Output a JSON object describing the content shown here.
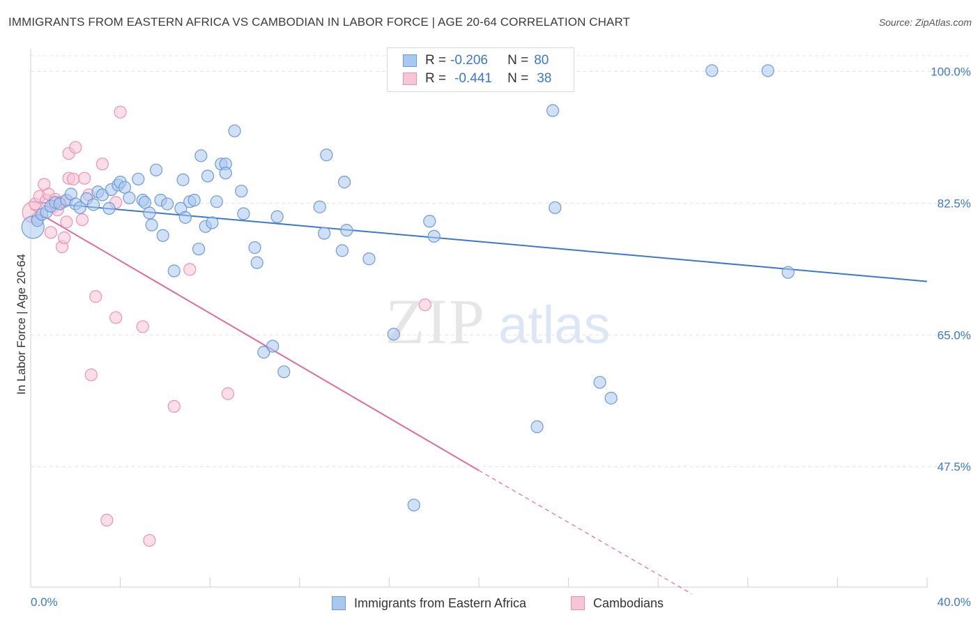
{
  "title": "IMMIGRANTS FROM EASTERN AFRICA VS CAMBODIAN IN LABOR FORCE | AGE 20-64 CORRELATION CHART",
  "source": "Source: ZipAtlas.com",
  "colors": {
    "blue": "#3a78d0",
    "blue_fill": "#a9c8f0",
    "pink": "#e26a9a",
    "pink_fill": "#f7b9cd",
    "grid": "#e3e3e3",
    "axis_label": "#3a78d0"
  },
  "legend": {
    "series1": {
      "r_label": "R =",
      "r_value": "-0.206",
      "n_label": "N =",
      "n_value": "80"
    },
    "series2": {
      "r_label": "R =",
      "r_value": "-0.441",
      "n_label": "N =",
      "n_value": "38"
    }
  },
  "bottom_legend": {
    "series1": "Immigrants from Eastern Africa",
    "series2": "Cambodians"
  },
  "watermark": {
    "zip": "ZIP",
    "atlas": "atlas"
  },
  "chart_data": {
    "type": "scatter",
    "title": "IMMIGRANTS FROM EASTERN AFRICA VS CAMBODIAN IN LABOR FORCE | AGE 20-64 CORRELATION CHART",
    "xlabel": "",
    "ylabel": "In Labor Force | Age 20-64",
    "xlim": [
      0,
      40
    ],
    "ylim": [
      31.5,
      103.0
    ],
    "x_tick_labels": [
      "0.0%",
      "40.0%"
    ],
    "y_ticks": [
      47.5,
      65.0,
      82.5,
      100.0
    ],
    "y_tick_labels": [
      "47.5%",
      "65.0%",
      "82.5%",
      "100.0%"
    ],
    "legend_position": "top-center",
    "grid": true,
    "series": [
      {
        "name": "Immigrants from Eastern Africa",
        "R": -0.206,
        "N": 80,
        "trend": {
          "x0": 0,
          "y0": 82.7,
          "x1": 40,
          "y1": 72.1
        },
        "points": [
          {
            "x": 0.1,
            "y": 79.3,
            "big": true
          },
          {
            "x": 0.3,
            "y": 80.2
          },
          {
            "x": 0.5,
            "y": 81.0
          },
          {
            "x": 0.7,
            "y": 81.3
          },
          {
            "x": 0.9,
            "y": 82.1
          },
          {
            "x": 1.1,
            "y": 82.6
          },
          {
            "x": 1.3,
            "y": 82.4
          },
          {
            "x": 1.6,
            "y": 82.9
          },
          {
            "x": 1.8,
            "y": 83.7
          },
          {
            "x": 2.0,
            "y": 82.4
          },
          {
            "x": 2.2,
            "y": 81.9
          },
          {
            "x": 2.5,
            "y": 83.1
          },
          {
            "x": 2.8,
            "y": 82.3
          },
          {
            "x": 3.0,
            "y": 84.0
          },
          {
            "x": 3.2,
            "y": 83.6
          },
          {
            "x": 3.5,
            "y": 81.8
          },
          {
            "x": 3.6,
            "y": 84.3
          },
          {
            "x": 3.9,
            "y": 84.9
          },
          {
            "x": 4.0,
            "y": 85.3
          },
          {
            "x": 4.2,
            "y": 84.6
          },
          {
            "x": 4.4,
            "y": 83.2
          },
          {
            "x": 4.8,
            "y": 85.7
          },
          {
            "x": 5.0,
            "y": 82.9
          },
          {
            "x": 5.1,
            "y": 82.6
          },
          {
            "x": 5.3,
            "y": 81.2
          },
          {
            "x": 5.4,
            "y": 79.6
          },
          {
            "x": 5.6,
            "y": 86.9
          },
          {
            "x": 5.8,
            "y": 82.9
          },
          {
            "x": 5.9,
            "y": 78.2
          },
          {
            "x": 6.1,
            "y": 82.4
          },
          {
            "x": 6.4,
            "y": 73.5
          },
          {
            "x": 6.7,
            "y": 81.8
          },
          {
            "x": 6.8,
            "y": 85.6
          },
          {
            "x": 6.9,
            "y": 80.6
          },
          {
            "x": 7.1,
            "y": 82.7
          },
          {
            "x": 7.3,
            "y": 82.9
          },
          {
            "x": 7.5,
            "y": 76.4
          },
          {
            "x": 7.6,
            "y": 88.8
          },
          {
            "x": 7.8,
            "y": 79.4
          },
          {
            "x": 7.9,
            "y": 86.1
          },
          {
            "x": 8.1,
            "y": 79.9
          },
          {
            "x": 8.3,
            "y": 82.7
          },
          {
            "x": 8.5,
            "y": 87.7
          },
          {
            "x": 8.7,
            "y": 87.7
          },
          {
            "x": 8.7,
            "y": 86.5
          },
          {
            "x": 9.1,
            "y": 92.1
          },
          {
            "x": 9.4,
            "y": 84.1
          },
          {
            "x": 9.5,
            "y": 81.1
          },
          {
            "x": 10.0,
            "y": 76.6
          },
          {
            "x": 10.1,
            "y": 74.6
          },
          {
            "x": 10.4,
            "y": 62.7
          },
          {
            "x": 10.8,
            "y": 63.5
          },
          {
            "x": 11.0,
            "y": 80.7
          },
          {
            "x": 11.3,
            "y": 60.1
          },
          {
            "x": 12.9,
            "y": 82.0
          },
          {
            "x": 13.1,
            "y": 78.5
          },
          {
            "x": 13.2,
            "y": 88.9
          },
          {
            "x": 13.9,
            "y": 76.2
          },
          {
            "x": 14.0,
            "y": 85.3
          },
          {
            "x": 14.1,
            "y": 78.9
          },
          {
            "x": 15.1,
            "y": 75.1
          },
          {
            "x": 16.2,
            "y": 65.1
          },
          {
            "x": 17.1,
            "y": 42.4
          },
          {
            "x": 17.8,
            "y": 80.1
          },
          {
            "x": 18.0,
            "y": 78.1
          },
          {
            "x": 22.6,
            "y": 52.8
          },
          {
            "x": 23.3,
            "y": 94.8
          },
          {
            "x": 23.4,
            "y": 81.9
          },
          {
            "x": 25.4,
            "y": 58.7
          },
          {
            "x": 25.9,
            "y": 56.6
          },
          {
            "x": 30.4,
            "y": 100.1
          },
          {
            "x": 32.9,
            "y": 100.1
          },
          {
            "x": 33.8,
            "y": 73.3
          }
        ]
      },
      {
        "name": "Cambodians",
        "R": -0.441,
        "N": 38,
        "trend": {
          "x0": 0,
          "y0": 81.8,
          "x1": 20.0,
          "y1": 47.0
        },
        "trend_dashed": {
          "x0": 20.0,
          "y0": 47.0,
          "x1": 29.5,
          "y1": 30.6
        },
        "points": [
          {
            "x": 0.1,
            "y": 81.3,
            "big": true
          },
          {
            "x": 0.2,
            "y": 82.4
          },
          {
            "x": 0.3,
            "y": 80.5
          },
          {
            "x": 0.4,
            "y": 83.4
          },
          {
            "x": 0.6,
            "y": 85.0
          },
          {
            "x": 0.7,
            "y": 82.9
          },
          {
            "x": 0.8,
            "y": 83.7
          },
          {
            "x": 0.9,
            "y": 78.6
          },
          {
            "x": 1.0,
            "y": 82.0
          },
          {
            "x": 1.1,
            "y": 83.0
          },
          {
            "x": 1.2,
            "y": 81.6
          },
          {
            "x": 1.3,
            "y": 82.6
          },
          {
            "x": 1.4,
            "y": 76.7
          },
          {
            "x": 1.5,
            "y": 82.7
          },
          {
            "x": 1.5,
            "y": 77.9
          },
          {
            "x": 1.6,
            "y": 80.0
          },
          {
            "x": 1.7,
            "y": 89.1
          },
          {
            "x": 1.7,
            "y": 85.8
          },
          {
            "x": 1.9,
            "y": 85.7
          },
          {
            "x": 2.0,
            "y": 89.9
          },
          {
            "x": 2.3,
            "y": 80.3
          },
          {
            "x": 2.4,
            "y": 85.8
          },
          {
            "x": 2.6,
            "y": 83.6
          },
          {
            "x": 2.7,
            "y": 59.7
          },
          {
            "x": 2.9,
            "y": 70.1
          },
          {
            "x": 3.2,
            "y": 87.7
          },
          {
            "x": 3.4,
            "y": 40.4
          },
          {
            "x": 3.8,
            "y": 67.3
          },
          {
            "x": 3.8,
            "y": 82.6
          },
          {
            "x": 4.0,
            "y": 94.6
          },
          {
            "x": 5.0,
            "y": 66.1
          },
          {
            "x": 5.3,
            "y": 37.7
          },
          {
            "x": 6.4,
            "y": 55.5
          },
          {
            "x": 7.1,
            "y": 73.7
          },
          {
            "x": 8.8,
            "y": 57.2
          },
          {
            "x": 17.6,
            "y": 69.0
          }
        ]
      }
    ]
  }
}
